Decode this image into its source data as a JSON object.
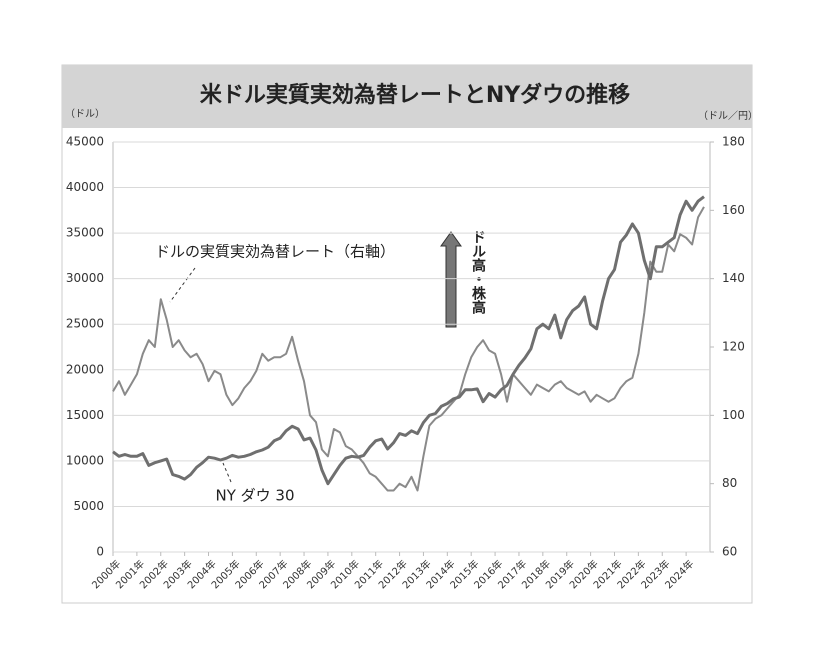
{
  "chart_data": {
    "type": "line",
    "title": "米ドル実質実効為替レートとNYダウの推移",
    "y_label": "（ドル）",
    "y2_label": "（ドル／円）",
    "annotation": "ドル高・株高",
    "x": [
      2000,
      2000.25,
      2000.5,
      2000.75,
      2001,
      2001.25,
      2001.5,
      2001.75,
      2002,
      2002.25,
      2002.5,
      2002.75,
      2003,
      2003.25,
      2003.5,
      2003.75,
      2004,
      2004.25,
      2004.5,
      2004.75,
      2005,
      2005.25,
      2005.5,
      2005.75,
      2006,
      2006.25,
      2006.5,
      2006.75,
      2007,
      2007.25,
      2007.5,
      2007.75,
      2008,
      2008.25,
      2008.5,
      2008.75,
      2009,
      2009.25,
      2009.5,
      2009.75,
      2010,
      2010.25,
      2010.5,
      2010.75,
      2011,
      2011.25,
      2011.5,
      2011.75,
      2012,
      2012.25,
      2012.5,
      2012.75,
      2013,
      2013.25,
      2013.5,
      2013.75,
      2014,
      2014.25,
      2014.5,
      2014.75,
      2015,
      2015.25,
      2015.5,
      2015.75,
      2016,
      2016.25,
      2016.5,
      2016.75,
      2017,
      2017.25,
      2017.5,
      2017.75,
      2018,
      2018.25,
      2018.5,
      2018.75,
      2019,
      2019.25,
      2019.5,
      2019.75,
      2020,
      2020.25,
      2020.5,
      2020.75,
      2021,
      2021.25,
      2021.5,
      2021.75,
      2022,
      2022.25,
      2022.5,
      2022.75,
      2023,
      2023.25,
      2023.5,
      2023.75,
      2024,
      2024.25,
      2024.5,
      2024.75
    ],
    "xlim": [
      2000,
      2025
    ],
    "xticks": [
      {
        "value": 2000,
        "label": "2000年"
      },
      {
        "value": 2001,
        "label": "2001年"
      },
      {
        "value": 2002,
        "label": "2002年"
      },
      {
        "value": 2003,
        "label": "2003年"
      },
      {
        "value": 2004,
        "label": "2004年"
      },
      {
        "value": 2005,
        "label": "2005年"
      },
      {
        "value": 2006,
        "label": "2006年"
      },
      {
        "value": 2007,
        "label": "2007年"
      },
      {
        "value": 2008,
        "label": "2008年"
      },
      {
        "value": 2009,
        "label": "2009年"
      },
      {
        "value": 2010,
        "label": "2010年"
      },
      {
        "value": 2011,
        "label": "2011年"
      },
      {
        "value": 2012,
        "label": "2012年"
      },
      {
        "value": 2013,
        "label": "2013年"
      },
      {
        "value": 2014,
        "label": "2014年"
      },
      {
        "value": 2015,
        "label": "2015年"
      },
      {
        "value": 2016,
        "label": "2016年"
      },
      {
        "value": 2017,
        "label": "2017年"
      },
      {
        "value": 2018,
        "label": "2018年"
      },
      {
        "value": 2019,
        "label": "2019年"
      },
      {
        "value": 2020,
        "label": "2020年"
      },
      {
        "value": 2021,
        "label": "2021年"
      },
      {
        "value": 2022,
        "label": "2022年"
      },
      {
        "value": 2023,
        "label": "2023年"
      },
      {
        "value": 2024,
        "label": "2024年"
      }
    ],
    "ylim": [
      0,
      45000
    ],
    "yticks": [
      0,
      5000,
      10000,
      15000,
      20000,
      25000,
      30000,
      35000,
      40000,
      45000
    ],
    "y2lim": [
      60,
      180
    ],
    "y2ticks": [
      60,
      80,
      100,
      120,
      140,
      160,
      180
    ],
    "grid": true,
    "series": [
      {
        "name": "NY ダウ 30",
        "color": "#6f6f6f",
        "values": [
          11000,
          10500,
          10700,
          10500,
          10500,
          10800,
          9500,
          9800,
          10000,
          10200,
          8500,
          8300,
          8000,
          8500,
          9300,
          9800,
          10400,
          10300,
          10100,
          10300,
          10600,
          10400,
          10500,
          10700,
          11000,
          11200,
          11500,
          12200,
          12500,
          13300,
          13800,
          13500,
          12300,
          12500,
          11200,
          9000,
          7500,
          8500,
          9500,
          10300,
          10500,
          10400,
          10600,
          11500,
          12200,
          12400,
          11300,
          12000,
          13000,
          12800,
          13300,
          13000,
          14200,
          15000,
          15200,
          16000,
          16300,
          16800,
          17000,
          17800,
          17800,
          17900,
          16500,
          17400,
          17000,
          17800,
          18300,
          19500,
          20500,
          21300,
          22300,
          24500,
          25000,
          24500,
          26000,
          23500,
          25500,
          26500,
          27000,
          28000,
          25000,
          24500,
          27500,
          30000,
          31000,
          34000,
          34800,
          36000,
          35000,
          32000,
          30000,
          33500,
          33500,
          34000,
          34500,
          37000,
          38500,
          37500,
          38500,
          39000
        ]
      },
      {
        "name": "ドルの実質実効為替レート（右軸）",
        "color": "#8a8a8a",
        "axis": "y2",
        "values": [
          107,
          110,
          106,
          109,
          112,
          118,
          122,
          120,
          134,
          128,
          120,
          122,
          119,
          117,
          118,
          115,
          110,
          113,
          112,
          106,
          103,
          105,
          108,
          110,
          113,
          118,
          116,
          117,
          117,
          118,
          123,
          116,
          110,
          100,
          98,
          90,
          88,
          96,
          95,
          91,
          90,
          88,
          86,
          83,
          82,
          80,
          78,
          78,
          80,
          79,
          82,
          78,
          88,
          97,
          99,
          100,
          102,
          104,
          106,
          112,
          117,
          120,
          122,
          119,
          118,
          112,
          104,
          112,
          110,
          108,
          106,
          109,
          108,
          107,
          109,
          110,
          108,
          107,
          106,
          107,
          104,
          106,
          105,
          104,
          105,
          108,
          110,
          111,
          118,
          130,
          145,
          142,
          142,
          150,
          148,
          153,
          152,
          150,
          158,
          161
        ]
      }
    ]
  }
}
